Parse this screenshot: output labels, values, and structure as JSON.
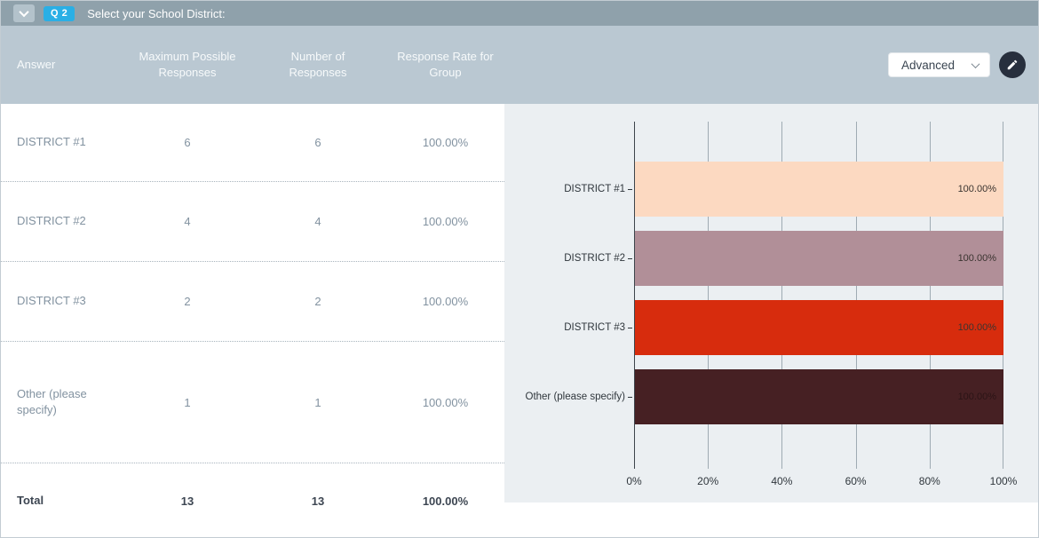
{
  "header": {
    "question_badge": "Q 2",
    "title": "Select your School District:",
    "advanced_label": "Advanced"
  },
  "table": {
    "columns": [
      "Answer",
      "Maximum Possible Responses",
      "Number of Responses",
      "Response Rate for Group"
    ],
    "rows": [
      {
        "answer": "DISTRICT #1",
        "max_possible": "6",
        "num_responses": "6",
        "response_rate": "100.00%"
      },
      {
        "answer": "DISTRICT #2",
        "max_possible": "4",
        "num_responses": "4",
        "response_rate": "100.00%"
      },
      {
        "answer": "DISTRICT #3",
        "max_possible": "2",
        "num_responses": "2",
        "response_rate": "100.00%"
      },
      {
        "answer": "Other (please specify)",
        "max_possible": "1",
        "num_responses": "1",
        "response_rate": "100.00%"
      }
    ],
    "total_row": {
      "answer": "Total",
      "max_possible": "13",
      "num_responses": "13",
      "response_rate": "100.00%"
    }
  },
  "chart_data": {
    "type": "bar",
    "orientation": "horizontal",
    "categories": [
      "DISTRICT #1",
      "DISTRICT #2",
      "DISTRICT #3",
      "Other (please specify)"
    ],
    "values": [
      100,
      100,
      100,
      100
    ],
    "value_labels": [
      "100.00%",
      "100.00%",
      "100.00%",
      "100.00%"
    ],
    "x_ticks": [
      "0%",
      "20%",
      "40%",
      "60%",
      "80%",
      "100%"
    ],
    "xlim": [
      0,
      100
    ],
    "grid": true,
    "legend": false,
    "bar_colors": [
      "#fcd9c1",
      "#b18f98",
      "#d72c0d",
      "#462023"
    ]
  },
  "colors": {
    "titlebar_bg": "#8fa1ab",
    "badge_bg": "#2aafe5",
    "table_header_bg": "#bac8d2",
    "chart_panel_bg": "#ebeff2",
    "row_text": "#8292a0",
    "total_text": "#3d4652",
    "edit_button_bg": "#272f3d"
  }
}
